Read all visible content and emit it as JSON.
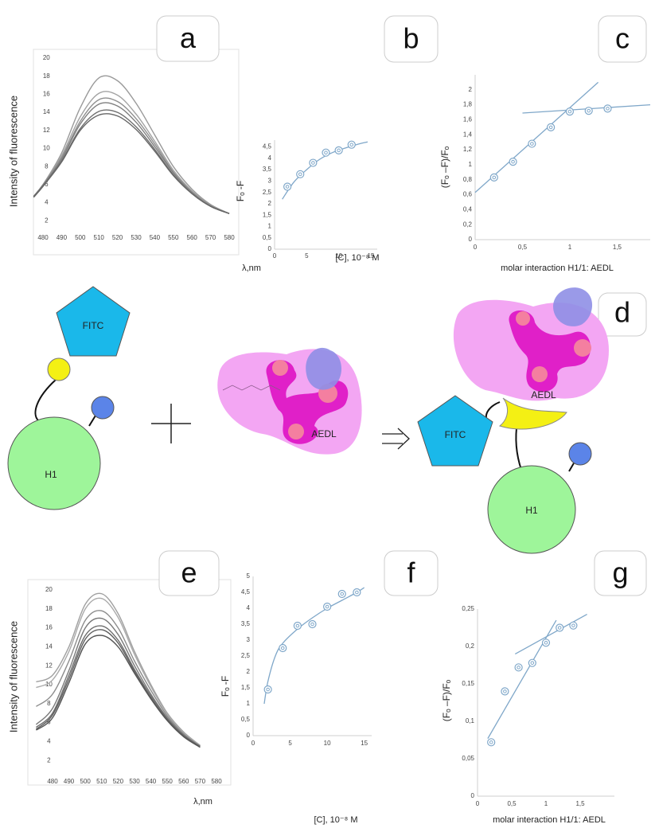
{
  "chart_data": [
    {
      "type": "line",
      "panel_label": "a",
      "ylabel": "Intensity of fluorescence",
      "xlabel": "λ,nm",
      "x": [
        475,
        480,
        490,
        500,
        510,
        520,
        530,
        540,
        550,
        560,
        570,
        580
      ],
      "xlim": [
        475,
        585
      ],
      "ylim": [
        0,
        20
      ],
      "xticks": [
        480,
        490,
        500,
        510,
        520,
        530,
        540,
        550,
        560,
        570,
        580
      ],
      "yticks": [
        2,
        4,
        6,
        8,
        10,
        12,
        14,
        16,
        18,
        20
      ],
      "series": [
        {
          "color": "#9a9a9a",
          "values": [
            4.7,
            6,
            9.5,
            14.5,
            17.8,
            17.5,
            15,
            11.5,
            8,
            5.5,
            3.8,
            2.8
          ]
        },
        {
          "color": "#a3a3a3",
          "values": [
            4.7,
            6,
            9.2,
            13.5,
            16.1,
            15.9,
            13.8,
            10.8,
            7.6,
            5.3,
            3.7,
            2.8
          ]
        },
        {
          "color": "#8f8f8f",
          "values": [
            4.7,
            6,
            9,
            13,
            15.4,
            15.2,
            13.3,
            10.5,
            7.4,
            5.2,
            3.7,
            2.8
          ]
        },
        {
          "color": "#7f7f7f",
          "values": [
            4.7,
            5.9,
            8.8,
            12.7,
            14.9,
            14.7,
            12.9,
            10.2,
            7.3,
            5.1,
            3.6,
            2.8
          ]
        },
        {
          "color": "#6f6f6f",
          "values": [
            4.7,
            5.9,
            8.6,
            12.2,
            14.1,
            14,
            12.4,
            9.9,
            7.1,
            5,
            3.6,
            2.8
          ]
        },
        {
          "color": "#666666",
          "values": [
            4.6,
            5.8,
            8.5,
            12,
            13.7,
            13.6,
            12.1,
            9.7,
            7,
            5,
            3.6,
            2.8
          ]
        }
      ]
    },
    {
      "type": "scatter",
      "panel_label": "b",
      "ylabel": "Fₒ -F",
      "xlabel": "[C], 10⁻⁸ M",
      "color": "#7fa7c9",
      "x": [
        2,
        4,
        6,
        8,
        10,
        12
      ],
      "values": [
        2.75,
        3.3,
        3.8,
        4.25,
        4.35,
        4.6
      ],
      "fits": [
        {
          "x": [
            1.2,
            3,
            5,
            7,
            9,
            11,
            13,
            14.5
          ],
          "values": [
            2.2,
            2.95,
            3.5,
            3.95,
            4.25,
            4.45,
            4.62,
            4.72
          ]
        }
      ],
      "xlim": [
        0,
        16
      ],
      "ylim": [
        0,
        4.8
      ],
      "xticks": [
        0,
        5,
        10,
        15
      ],
      "yticks": [
        0,
        {
          "value": 0.5,
          "label": "0,5"
        },
        1,
        {
          "value": 1.5,
          "label": "1,5"
        },
        2,
        {
          "value": 2.5,
          "label": "2,5"
        },
        3,
        {
          "value": 3.5,
          "label": "3,5"
        },
        4,
        {
          "value": 4.5,
          "label": "4,5"
        }
      ]
    },
    {
      "type": "scatter",
      "panel_label": "c",
      "ylabel": "(Fₒ –F)/Fₒ",
      "xlabel": "molar interaction H1/1: AEDL",
      "color": "#7fa7c9",
      "x": [
        0.2,
        0.4,
        0.6,
        0.8,
        1,
        1.2,
        1.4
      ],
      "values": [
        0.83,
        1.04,
        1.28,
        1.5,
        1.71,
        1.72,
        1.75
      ],
      "fits": [
        {
          "x": [
            0,
            1.3
          ],
          "values": [
            0.63,
            2.1
          ]
        },
        {
          "x": [
            0.5,
            1.85
          ],
          "values": [
            1.69,
            1.8
          ]
        }
      ],
      "xlim": [
        0,
        1.85
      ],
      "ylim": [
        0,
        2.2
      ],
      "xticks": [
        0,
        {
          "value": 0.5,
          "label": "0,5"
        },
        1,
        {
          "value": 1.5,
          "label": "1,5"
        }
      ],
      "yticks": [
        0,
        {
          "value": 0.2,
          "label": "0,2"
        },
        {
          "value": 0.4,
          "label": "0,4"
        },
        {
          "value": 0.6,
          "label": "0,6"
        },
        {
          "value": 0.8,
          "label": "0,8"
        },
        1,
        {
          "value": 1.2,
          "label": "1,2"
        },
        {
          "value": 1.4,
          "label": "1,4"
        },
        {
          "value": 1.6,
          "label": "1,6"
        },
        {
          "value": 1.8,
          "label": "1,8"
        },
        2
      ]
    },
    {
      "type": "line",
      "panel_label": "e",
      "ylabel": "Intensity of fluorescence",
      "xlabel": "λ,nm",
      "x": [
        470,
        480,
        490,
        500,
        510,
        520,
        530,
        540,
        550,
        560,
        570
      ],
      "xlim": [
        470,
        580
      ],
      "ylim": [
        0,
        20
      ],
      "xticks": [
        480,
        490,
        500,
        510,
        520,
        530,
        540,
        550,
        560,
        570,
        580
      ],
      "yticks": [
        2,
        4,
        6,
        8,
        10,
        12,
        14,
        16,
        18,
        20
      ],
      "series": [
        {
          "color": "#a0a0a0",
          "values": [
            10.3,
            11,
            14,
            18.5,
            19.6,
            17.5,
            13.5,
            10,
            7,
            5,
            3.6
          ]
        },
        {
          "color": "#aaaaaa",
          "values": [
            9.7,
            10.5,
            13.5,
            18,
            19.1,
            17.1,
            13.2,
            9.8,
            6.9,
            4.9,
            3.6
          ]
        },
        {
          "color": "#8c8c8c",
          "values": [
            7.7,
            9,
            12.5,
            16.8,
            17.8,
            16,
            12.5,
            9.4,
            6.7,
            4.8,
            3.5
          ]
        },
        {
          "color": "#7a7a7a",
          "values": [
            5.8,
            7.5,
            11.5,
            16,
            17,
            15.3,
            12,
            9,
            6.5,
            4.7,
            3.5
          ]
        },
        {
          "color": "#6e6e6e",
          "values": [
            5.5,
            7,
            11,
            15.2,
            16.2,
            14.7,
            11.6,
            8.8,
            6.4,
            4.6,
            3.5
          ]
        },
        {
          "color": "#606060",
          "values": [
            5.3,
            6.8,
            10.6,
            14.8,
            15.8,
            14.4,
            11.4,
            8.6,
            6.3,
            4.6,
            3.4
          ]
        },
        {
          "color": "#555555",
          "values": [
            5.2,
            6.5,
            10.2,
            14.3,
            15.2,
            14,
            11.2,
            8.5,
            6.2,
            4.5,
            3.4
          ]
        }
      ]
    },
    {
      "type": "scatter",
      "panel_label": "f",
      "ylabel": "Fₒ -F",
      "xlabel": "[C], 10⁻⁸ M",
      "color": "#7fa7c9",
      "x": [
        2,
        4,
        6,
        8,
        10,
        12,
        14
      ],
      "values": [
        1.45,
        2.75,
        3.45,
        3.5,
        4.05,
        4.45,
        4.5
      ],
      "fits": [
        {
          "x": [
            1.5,
            2,
            3,
            4,
            6,
            8,
            10,
            12,
            14,
            15
          ],
          "values": [
            1.0,
            1.7,
            2.5,
            2.9,
            3.35,
            3.7,
            4.0,
            4.25,
            4.5,
            4.65
          ]
        }
      ],
      "xlim": [
        0,
        16
      ],
      "ylim": [
        0,
        5
      ],
      "xticks": [
        0,
        5,
        10,
        15
      ],
      "yticks": [
        0,
        {
          "value": 0.5,
          "label": "0,5"
        },
        1,
        {
          "value": 1.5,
          "label": "1,5"
        },
        2,
        {
          "value": 2.5,
          "label": "2,5"
        },
        3,
        {
          "value": 3.5,
          "label": "3,5"
        },
        4,
        {
          "value": 4.5,
          "label": "4,5"
        },
        5
      ]
    },
    {
      "type": "scatter",
      "panel_label": "g",
      "ylabel": "(Fₒ –F)/Fₒ",
      "xlabel": "molar interaction H1/1: AEDL",
      "color": "#7fa7c9",
      "x": [
        0.2,
        0.4,
        0.6,
        0.8,
        1,
        1.2,
        1.4
      ],
      "values": [
        0.072,
        0.14,
        0.172,
        0.178,
        0.205,
        0.225,
        0.228
      ],
      "fits": [
        {
          "x": [
            0.15,
            1.15
          ],
          "values": [
            0.077,
            0.235
          ]
        },
        {
          "x": [
            0.55,
            1.6
          ],
          "values": [
            0.19,
            0.243
          ]
        }
      ],
      "xlim": [
        0,
        2
      ],
      "ylim": [
        0,
        0.25
      ],
      "xticks": [
        0,
        {
          "value": 0.5,
          "label": "0,5"
        },
        1,
        {
          "value": 1.5,
          "label": "1,5"
        }
      ],
      "yticks": [
        0,
        {
          "value": 0.05,
          "label": "0,05"
        },
        {
          "value": 0.1,
          "label": "0,1"
        },
        {
          "value": 0.15,
          "label": "0,15"
        },
        {
          "value": 0.2,
          "label": "0,2"
        },
        {
          "value": 0.25,
          "label": "0,25"
        }
      ]
    }
  ],
  "diagram": {
    "panel_label": "d",
    "left": {
      "fitc": "FITC",
      "h1": "H1",
      "ligand": "AEDL"
    },
    "right": {
      "fitc": "FITC",
      "h1": "H1",
      "ligand": "AEDL"
    }
  }
}
